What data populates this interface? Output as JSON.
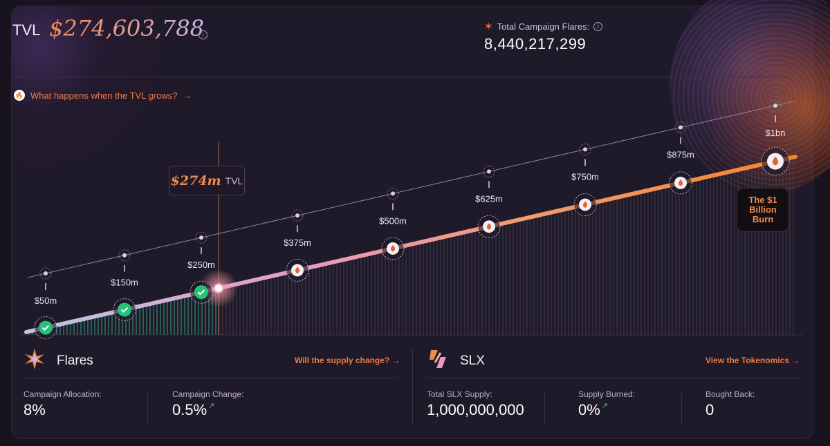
{
  "header": {
    "tvl_label": "TVL",
    "tvl_value": "$274,603,788",
    "flares_label": "Total Campaign Flares:",
    "flares_total": "8,440,217,299"
  },
  "link_tvl": "What happens when the TVL grows?",
  "chart_data": {
    "type": "line",
    "title": "",
    "milestones": [
      "$50m",
      "$150m",
      "$250m",
      "$375m",
      "$500m",
      "$625m",
      "$750m",
      "$875m",
      "$1bn"
    ],
    "milestone_values_m": [
      50,
      150,
      250,
      375,
      500,
      625,
      750,
      875,
      1000
    ],
    "reached": [
      true,
      true,
      true,
      false,
      false,
      false,
      false,
      false,
      false
    ],
    "current_value_m": 274,
    "current_label": "$274m",
    "current_unit": "TVL",
    "goal_label": "The $1 Billion Burn",
    "colors": {
      "start": "#b9c7e6",
      "mid": "#e89ac6",
      "end": "#f6852f",
      "check": "#27c27a"
    }
  },
  "flares_section": {
    "title": "Flares",
    "link": "Will the supply change?",
    "stats": [
      {
        "label": "Campaign Allocation:",
        "value": "8%"
      },
      {
        "label": "Campaign Change:",
        "value": "0.5%"
      }
    ]
  },
  "slx_section": {
    "title": "SLX",
    "link": "View the Tokenomics",
    "stats": [
      {
        "label": "Total SLX Supply:",
        "value": "1,000,000,000"
      },
      {
        "label": "Supply Burned:",
        "value": "0%"
      },
      {
        "label": "Bought Back:",
        "value": "0"
      }
    ]
  }
}
